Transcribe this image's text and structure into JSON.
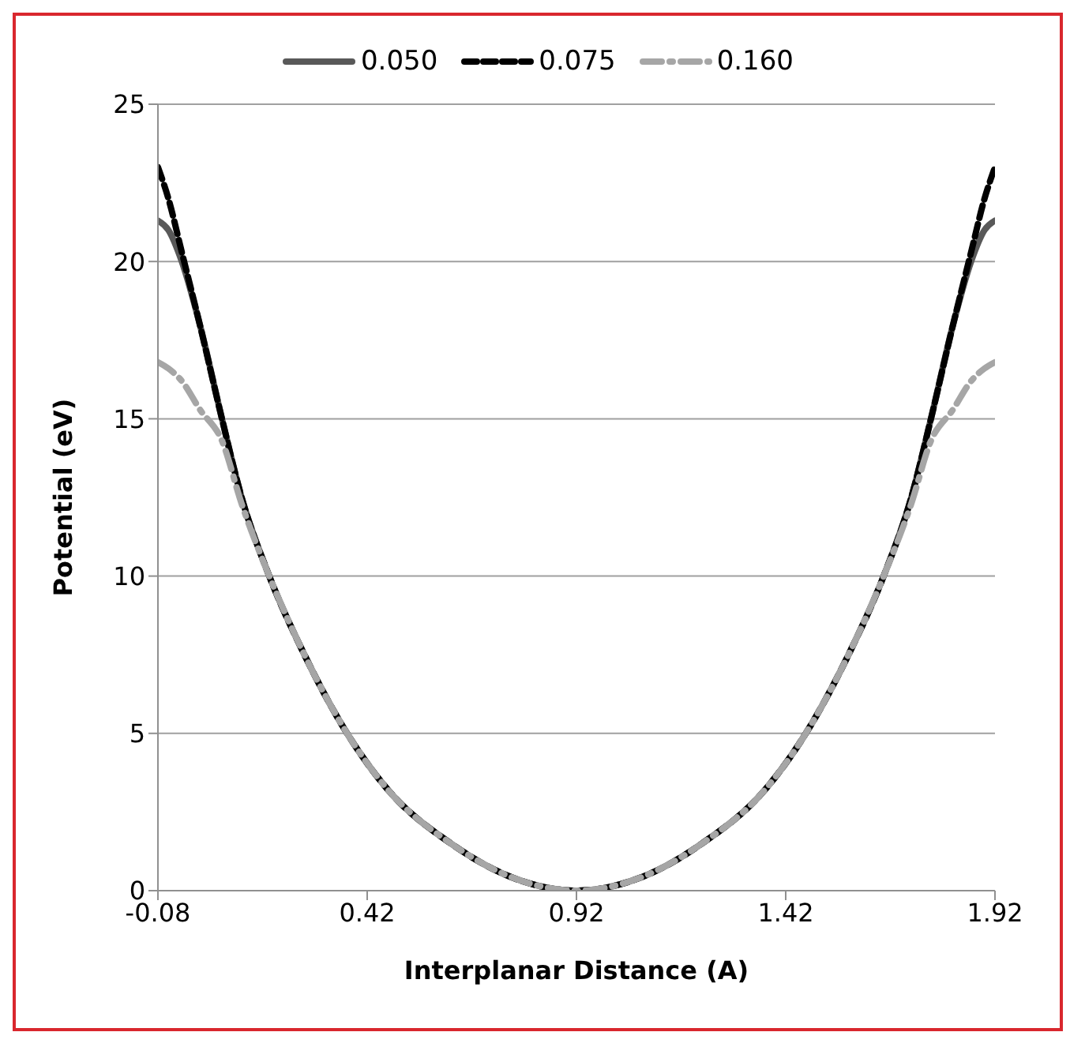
{
  "chart_data": {
    "type": "line",
    "xlabel": "Interplanar Distance (A)",
    "ylabel": "Potential (eV)",
    "x": [
      -0.08,
      -0.055,
      -0.023,
      0.02,
      0.073,
      0.12,
      0.186,
      0.27,
      0.372,
      0.47,
      0.62,
      0.77,
      0.92,
      1.07,
      1.22,
      1.37,
      1.468,
      1.57,
      1.654,
      1.72,
      1.767,
      1.82,
      1.863,
      1.895,
      1.92
    ],
    "series": [
      {
        "name": "0.050",
        "color": "#595959",
        "line_style": "solid",
        "values": [
          21.3,
          21,
          20,
          18,
          15,
          12.5,
          10,
          7.5,
          5,
          3.2,
          1.5,
          0.4,
          0,
          0.4,
          1.5,
          3.2,
          5,
          7.5,
          10,
          12.5,
          15,
          18,
          20,
          21,
          21.3
        ]
      },
      {
        "name": "0.075",
        "color": "#000000",
        "line_style": "dashed",
        "values": [
          23,
          22,
          20.3,
          18,
          15,
          12.5,
          10,
          7.5,
          5,
          3.2,
          1.5,
          0.4,
          0,
          0.4,
          1.5,
          3.2,
          5,
          7.5,
          10,
          12.5,
          15,
          18,
          20.3,
          22,
          23
        ]
      },
      {
        "name": "0.160",
        "color": "#a6a6a6",
        "line_style": "dashed",
        "values": [
          16.8,
          16.6,
          16.2,
          15.3,
          14.3,
          12.3,
          10,
          7.5,
          5,
          3.2,
          1.5,
          0.4,
          0,
          0.4,
          1.5,
          3.2,
          5,
          7.5,
          10,
          12.3,
          14.3,
          15.3,
          16.2,
          16.6,
          16.8
        ]
      }
    ],
    "xlim": [
      -0.08,
      1.92
    ],
    "xticks": [
      -0.08,
      0.42,
      0.92,
      1.42,
      1.92
    ],
    "ylim": [
      0,
      25
    ],
    "yticks": [
      0,
      5,
      10,
      15,
      20,
      25
    ],
    "grid": "y",
    "legend": "top",
    "marker": "none"
  }
}
